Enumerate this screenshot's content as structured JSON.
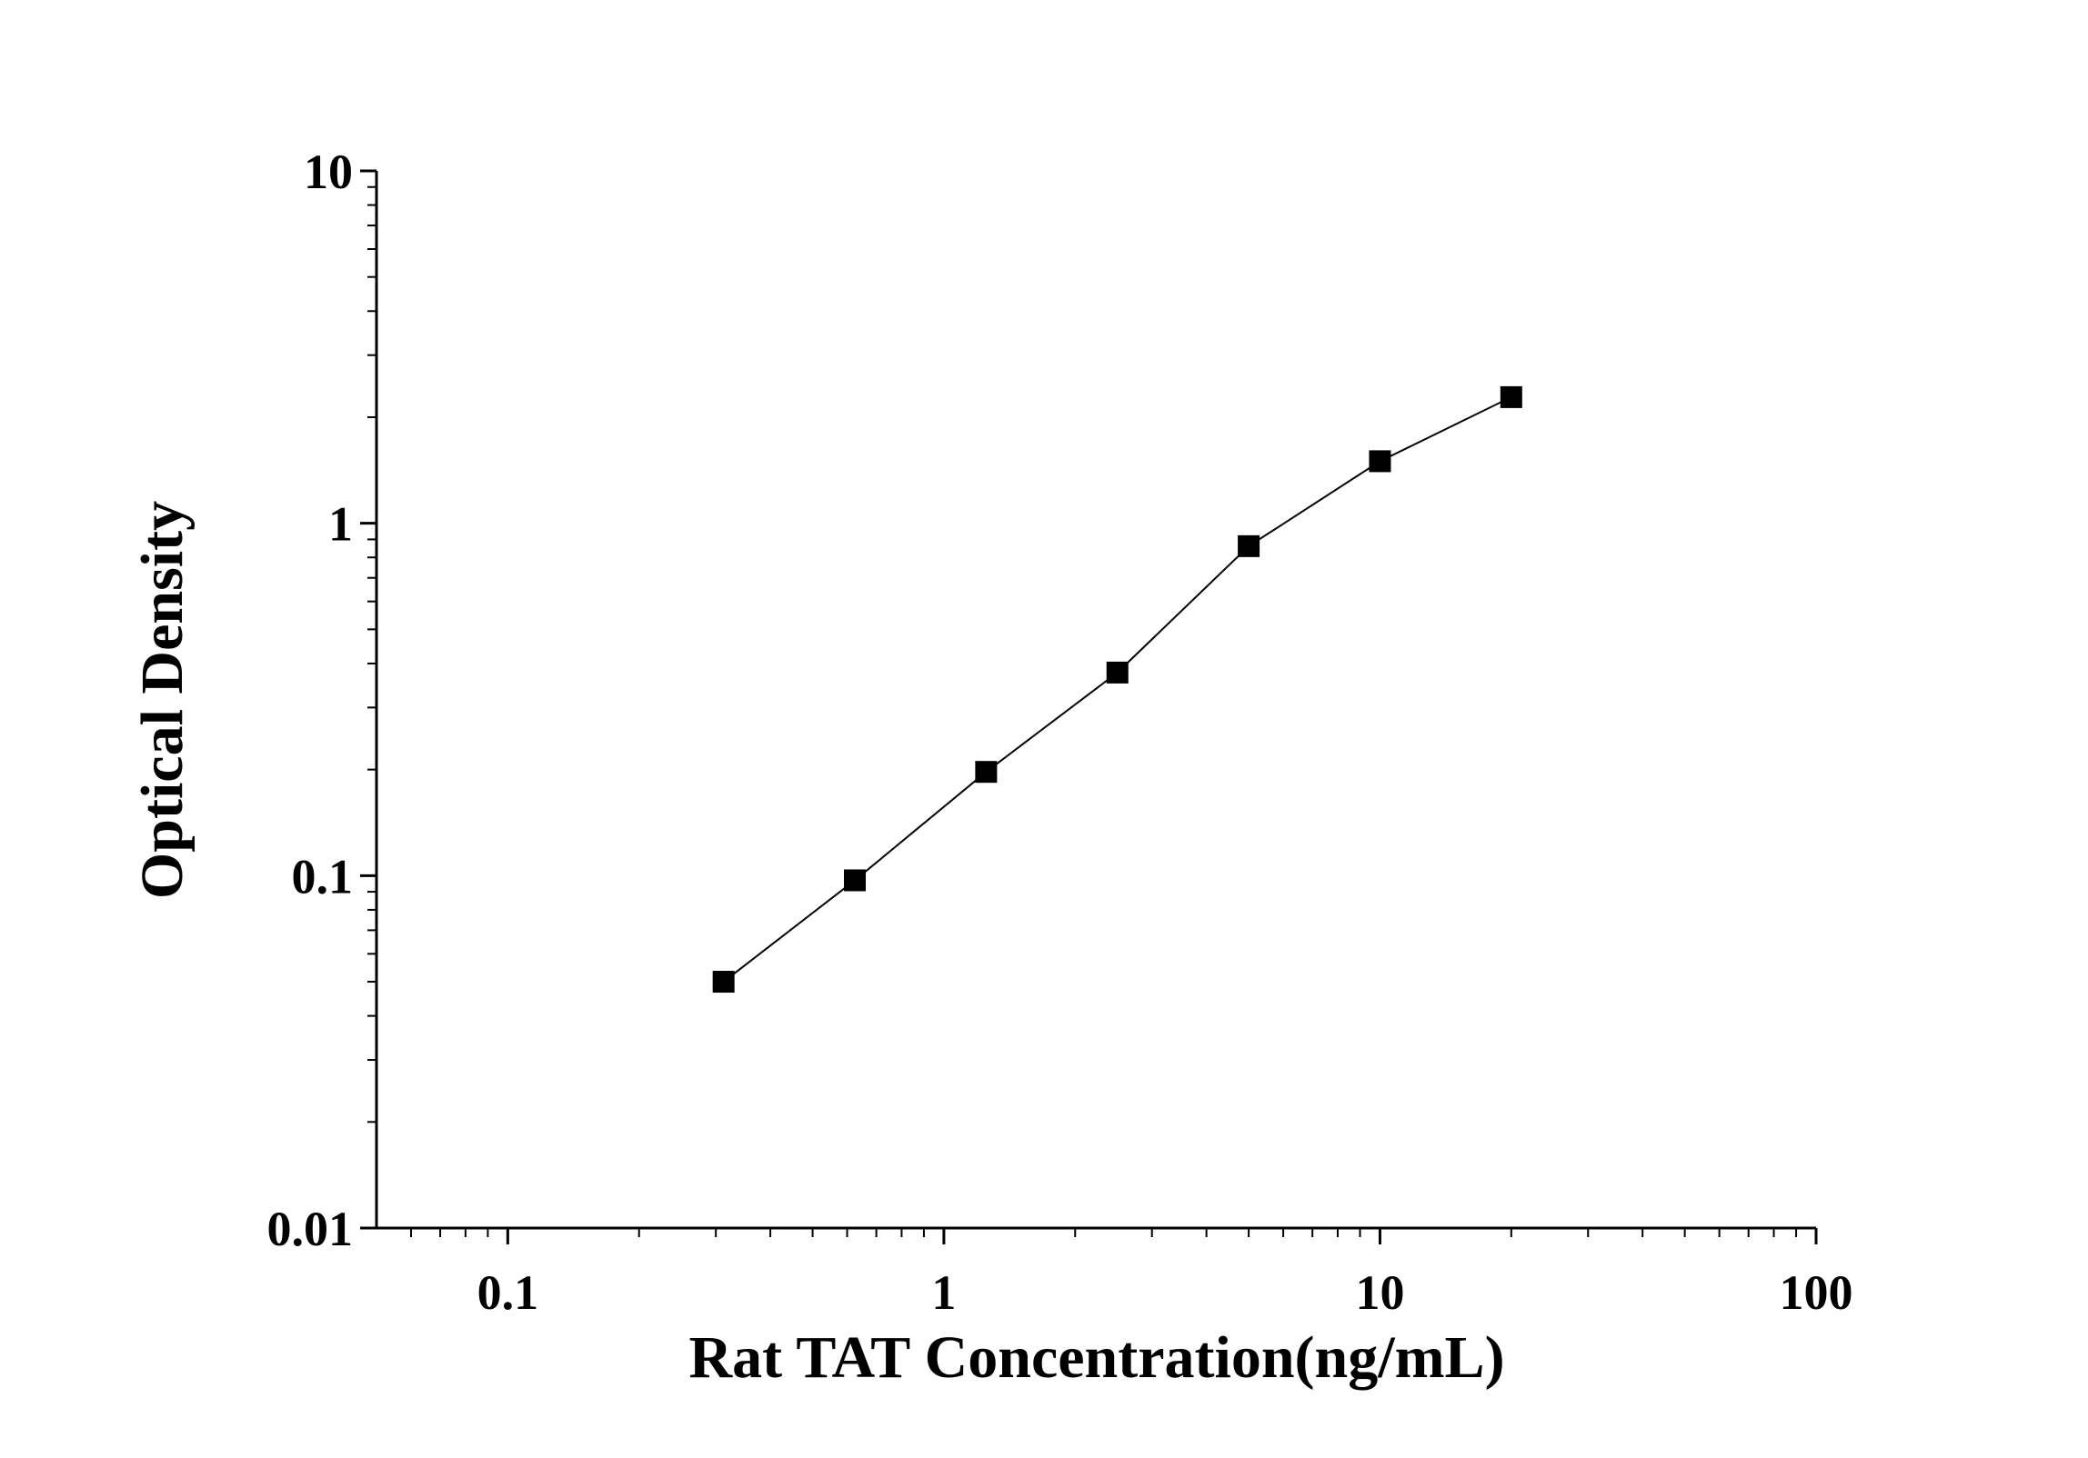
{
  "chart_data": {
    "type": "line",
    "x_label": "Rat TAT Concentration(ng/mL)",
    "y_label": "Optical Density",
    "x": [
      0.3125,
      0.625,
      1.25,
      2.5,
      5,
      10,
      20
    ],
    "series": [
      {
        "color": "#000000",
        "values": [
          0.05,
          0.097,
          0.197,
          0.377,
          0.861,
          1.5,
          2.28
        ]
      }
    ],
    "xlim": [
      0.05,
      100
    ],
    "ylim": [
      0.01,
      10
    ],
    "xticks": [
      0.1,
      1,
      10,
      100
    ],
    "yticks": [
      0.01,
      0.1,
      1,
      10
    ],
    "xscale": "log",
    "yscale": "log",
    "grid": false
  }
}
